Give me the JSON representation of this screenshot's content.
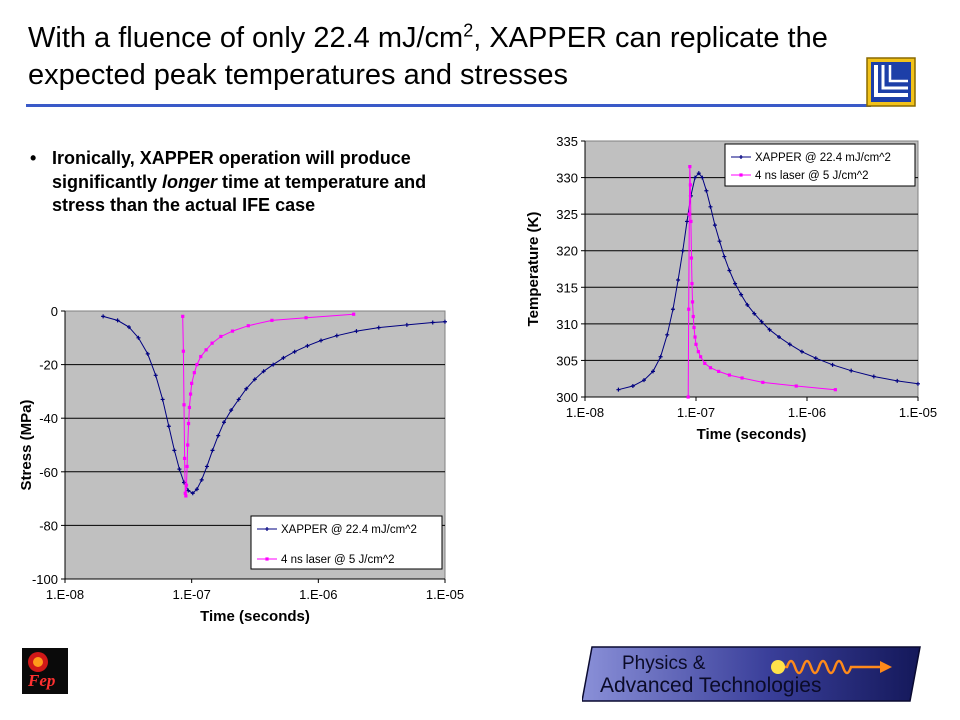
{
  "slide": {
    "title_part1": "With a fluence of only 22.4 mJ/cm",
    "title_sup": "2",
    "title_part2": ", XAPPER can replicate the expected peak temperatures and stresses",
    "bullet_symbol": "•",
    "bullet_text_1": "Ironically, XAPPER operation will produce significantly ",
    "bullet_text_emph": "longer",
    "bullet_text_2": " time at temperature and stress than the actual IFE case",
    "logo_fep_text": "Fep",
    "logo_pat_line1": "Physics &",
    "logo_pat_line2": "Advanced Technologies",
    "colors": {
      "title_rule": "#3a5ac8",
      "plot_bg": "#c0c0c0",
      "xapper": "#000080",
      "laser": "#ff00ff"
    }
  },
  "chart_data": [
    {
      "type": "line",
      "title": "",
      "xlabel": "Time (seconds)",
      "ylabel": "Stress (MPa)",
      "xscale": "log",
      "xlim": [
        1e-08,
        1e-05
      ],
      "ylim": [
        -100,
        0
      ],
      "x_ticks": [
        "1.E-08",
        "1.E-07",
        "1.E-06",
        "1.E-05"
      ],
      "y_ticks": [
        "0",
        "-20",
        "-40",
        "-60",
        "-80",
        "-100"
      ],
      "grid": true,
      "legend": "bottom-right",
      "series": [
        {
          "name": "XAPPER @ 22.4 mJ/cm^2",
          "color": "#000080",
          "x": [
            2e-08,
            2.6e-08,
            3.2e-08,
            3.8e-08,
            4.5e-08,
            5.2e-08,
            5.9e-08,
            6.6e-08,
            7.3e-08,
            8e-08,
            8.7e-08,
            9.4e-08,
            1.02e-07,
            1.1e-07,
            1.2e-07,
            1.32e-07,
            1.46e-07,
            1.62e-07,
            1.8e-07,
            2.05e-07,
            2.35e-07,
            2.7e-07,
            3.15e-07,
            3.7e-07,
            4.4e-07,
            5.3e-07,
            6.5e-07,
            8.2e-07,
            1.05e-06,
            1.4e-06,
            2e-06,
            3e-06,
            5e-06,
            8e-06,
            1e-05
          ],
          "y": [
            -2,
            -3.5,
            -6,
            -10,
            -16,
            -24,
            -33,
            -43,
            -52,
            -59,
            -64,
            -67,
            -68,
            -66.5,
            -63,
            -58,
            -52,
            -46.5,
            -41.5,
            -37,
            -33,
            -29,
            -25.5,
            -22.5,
            -20,
            -17.5,
            -15.2,
            -13,
            -11,
            -9.2,
            -7.5,
            -6.2,
            -5.2,
            -4.3,
            -4
          ]
        },
        {
          "name": "4 ns laser @ 5 J/cm^2",
          "color": "#ff00ff",
          "x": [
            8.5e-08,
            8.6e-08,
            8.7e-08,
            8.8e-08,
            8.9e-08,
            9e-08,
            9.1e-08,
            9.2e-08,
            9.3e-08,
            9.45e-08,
            9.6e-08,
            9.8e-08,
            1e-07,
            1.05e-07,
            1.1e-07,
            1.18e-07,
            1.3e-07,
            1.45e-07,
            1.7e-07,
            2.1e-07,
            2.8e-07,
            4.3e-07,
            8e-07,
            1.9e-06
          ],
          "y": [
            -2,
            -15,
            -35,
            -55,
            -68,
            -69,
            -65,
            -58,
            -50,
            -42,
            -36,
            -31,
            -27,
            -23,
            -20,
            -17,
            -14.5,
            -12,
            -9.5,
            -7.5,
            -5.5,
            -3.5,
            -2.5,
            -1.2
          ]
        }
      ]
    },
    {
      "type": "line",
      "title": "",
      "xlabel": "Time (seconds)",
      "ylabel": "Temperature (K)",
      "xscale": "log",
      "xlim": [
        1e-08,
        1e-05
      ],
      "ylim": [
        300,
        335
      ],
      "x_ticks": [
        "1.E-08",
        "1.E-07",
        "1.E-06",
        "1.E-05"
      ],
      "y_ticks": [
        "335",
        "330",
        "325",
        "320",
        "315",
        "310",
        "305",
        "300"
      ],
      "grid": true,
      "legend": "top-right",
      "series": [
        {
          "name": "XAPPER @ 22.4 mJ/cm^2",
          "color": "#000080",
          "x": [
            2e-08,
            2.7e-08,
            3.4e-08,
            4.1e-08,
            4.8e-08,
            5.5e-08,
            6.2e-08,
            6.9e-08,
            7.6e-08,
            8.3e-08,
            9e-08,
            9.8e-08,
            1.06e-07,
            1.14e-07,
            1.24e-07,
            1.35e-07,
            1.48e-07,
            1.63e-07,
            1.8e-07,
            2e-07,
            2.25e-07,
            2.55e-07,
            2.9e-07,
            3.35e-07,
            3.9e-07,
            4.6e-07,
            5.6e-07,
            7e-07,
            9e-07,
            1.2e-06,
            1.7e-06,
            2.5e-06,
            4e-06,
            6.5e-06,
            1e-05
          ],
          "y": [
            301,
            301.5,
            302.3,
            303.5,
            305.5,
            308.5,
            312,
            316,
            320,
            324,
            327.5,
            330,
            330.6,
            330,
            328.2,
            326,
            323.5,
            321.3,
            319.2,
            317.3,
            315.5,
            314,
            312.6,
            311.4,
            310.3,
            309.2,
            308.2,
            307.2,
            306.2,
            305.3,
            304.4,
            303.6,
            302.8,
            302.2,
            301.8
          ]
        },
        {
          "name": "4 ns laser @ 5 J/cm^2",
          "color": "#ff00ff",
          "x": [
            8.5e-08,
            8.6e-08,
            8.7e-08,
            8.8e-08,
            8.9e-08,
            9e-08,
            9.1e-08,
            9.2e-08,
            9.3e-08,
            9.45e-08,
            9.6e-08,
            9.8e-08,
            1e-07,
            1.05e-07,
            1.1e-07,
            1.2e-07,
            1.35e-07,
            1.6e-07,
            2e-07,
            2.6e-07,
            4e-07,
            8e-07,
            1.8e-06
          ],
          "y": [
            300,
            312,
            325,
            331.5,
            329,
            324,
            319,
            315.5,
            313,
            311,
            309.5,
            308.2,
            307.2,
            306.2,
            305.5,
            304.6,
            304,
            303.5,
            303,
            302.6,
            302,
            301.5,
            301
          ]
        }
      ]
    }
  ]
}
